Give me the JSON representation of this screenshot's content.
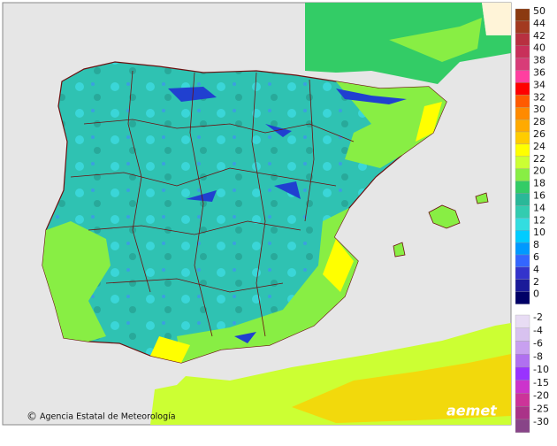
{
  "credit": "Agencia Estatal de Meteorología",
  "logo": "aemet",
  "legend": {
    "upper": [
      {
        "value": 50,
        "color": "#8b3a10"
      },
      {
        "value": 44,
        "color": "#a33a20"
      },
      {
        "value": 42,
        "color": "#b83040"
      },
      {
        "value": 40,
        "color": "#c8305a"
      },
      {
        "value": 38,
        "color": "#d83c78"
      },
      {
        "value": 36,
        "color": "#ff3fa0"
      },
      {
        "value": 34,
        "color": "#ff0000"
      },
      {
        "value": 32,
        "color": "#ff5a00"
      },
      {
        "value": 30,
        "color": "#ff8a00"
      },
      {
        "value": 28,
        "color": "#ffaa00"
      },
      {
        "value": 26,
        "color": "#ffcc00"
      },
      {
        "value": 24,
        "color": "#ffff00"
      },
      {
        "value": 22,
        "color": "#ccff33"
      },
      {
        "value": 20,
        "color": "#88ee44"
      },
      {
        "value": 18,
        "color": "#33cc66"
      },
      {
        "value": 16,
        "color": "#2ab898"
      },
      {
        "value": 14,
        "color": "#33ccb0"
      },
      {
        "value": 12,
        "color": "#33dde0"
      },
      {
        "value": 10,
        "color": "#00ccff"
      },
      {
        "value": 8,
        "color": "#0099ff"
      },
      {
        "value": 6,
        "color": "#3366ff"
      },
      {
        "value": 4,
        "color": "#3333cc"
      },
      {
        "value": 2,
        "color": "#1a1a99"
      },
      {
        "value": 0,
        "color": "#000066"
      }
    ],
    "lower": [
      {
        "value": -2,
        "color": "#e8dcf4"
      },
      {
        "value": -4,
        "color": "#d8c2f0"
      },
      {
        "value": -6,
        "color": "#c8a0f0"
      },
      {
        "value": -8,
        "color": "#b070f0"
      },
      {
        "value": -10,
        "color": "#9933ff"
      },
      {
        "value": -15,
        "color": "#cc33cc"
      },
      {
        "value": -20,
        "color": "#cc3399"
      },
      {
        "value": -25,
        "color": "#aa3388"
      },
      {
        "value": -30,
        "color": "#884488"
      }
    ]
  }
}
